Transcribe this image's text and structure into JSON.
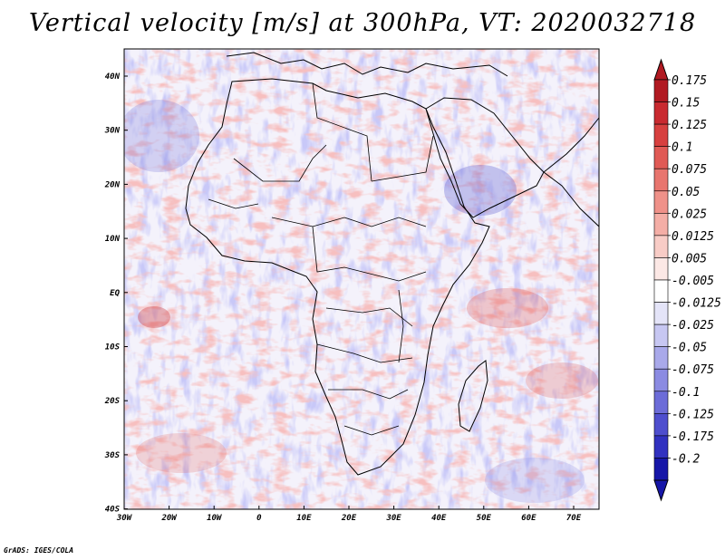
{
  "title": "Vertical velocity [m/s] at 300hPa, VT: 2020032718",
  "credit": "GrADS: IGES/COLA",
  "axes": {
    "lon_labels": [
      "30W",
      "20W",
      "10W",
      "0",
      "10E",
      "20E",
      "30E",
      "40E",
      "50E",
      "60E",
      "70E"
    ],
    "lat_labels": [
      "40N",
      "30N",
      "20N",
      "10N",
      "EQ",
      "10S",
      "20S",
      "30S",
      "40S"
    ]
  },
  "colorbar": {
    "levels": [
      "0.175",
      "0.15",
      "0.125",
      "0.1",
      "0.075",
      "0.05",
      "0.025",
      "0.0125",
      "0.005",
      "-0.005",
      "-0.0125",
      "-0.025",
      "-0.05",
      "-0.075",
      "-0.1",
      "-0.125",
      "-0.175",
      "-0.2"
    ],
    "colors": [
      "#b11a22",
      "#c92a30",
      "#d7403f",
      "#e05a55",
      "#e8756e",
      "#ef9189",
      "#f4aea6",
      "#f8ccc6",
      "#fce8e5",
      "#ffffff",
      "#e4e4f8",
      "#c7c7f2",
      "#a9a9ea",
      "#8b8be2",
      "#6c6cd8",
      "#4e4ece",
      "#3131c0",
      "#1616a8"
    ]
  }
}
